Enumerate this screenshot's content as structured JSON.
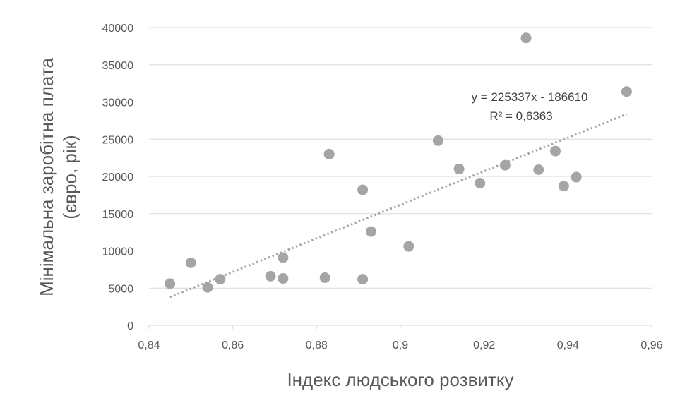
{
  "chart_data": {
    "type": "scatter",
    "title": "",
    "xlabel": "Індекс людського розвитку",
    "ylabel_line1": "Мінімальна заробітна плата",
    "ylabel_line2": "(євро, рік)",
    "xlim": [
      0.84,
      0.96
    ],
    "ylim": [
      0,
      40000
    ],
    "x_ticks": [
      0.84,
      0.86,
      0.88,
      0.9,
      0.92,
      0.94,
      0.96
    ],
    "x_tick_labels": [
      "0,84",
      "0,86",
      "0,88",
      "0,9",
      "0,92",
      "0,94",
      "0,96"
    ],
    "y_ticks": [
      0,
      5000,
      10000,
      15000,
      20000,
      25000,
      30000,
      35000,
      40000
    ],
    "y_tick_labels": [
      "0",
      "5000",
      "10000",
      "15000",
      "20000",
      "25000",
      "30000",
      "35000",
      "40000"
    ],
    "grid": "horizontal",
    "legend": "none",
    "colors": {
      "marker": "#a5a5a5",
      "trendline": "#a5a5a5",
      "grid": "#d9d9d9",
      "text": "#595959"
    },
    "series": [
      {
        "points": [
          {
            "x": 0.845,
            "y": 5600
          },
          {
            "x": 0.85,
            "y": 8400
          },
          {
            "x": 0.854,
            "y": 5100
          },
          {
            "x": 0.857,
            "y": 6200
          },
          {
            "x": 0.869,
            "y": 6600
          },
          {
            "x": 0.872,
            "y": 9100
          },
          {
            "x": 0.872,
            "y": 6300
          },
          {
            "x": 0.882,
            "y": 6400
          },
          {
            "x": 0.883,
            "y": 23000
          },
          {
            "x": 0.891,
            "y": 18200
          },
          {
            "x": 0.891,
            "y": 6200
          },
          {
            "x": 0.893,
            "y": 12600
          },
          {
            "x": 0.902,
            "y": 10600
          },
          {
            "x": 0.909,
            "y": 24800
          },
          {
            "x": 0.914,
            "y": 21000
          },
          {
            "x": 0.919,
            "y": 19100
          },
          {
            "x": 0.925,
            "y": 21500
          },
          {
            "x": 0.93,
            "y": 38600
          },
          {
            "x": 0.933,
            "y": 20900
          },
          {
            "x": 0.937,
            "y": 23400
          },
          {
            "x": 0.939,
            "y": 18700
          },
          {
            "x": 0.942,
            "y": 19900
          },
          {
            "x": 0.954,
            "y": 31400
          }
        ]
      }
    ],
    "trendline": {
      "type": "linear",
      "slope": 225337,
      "intercept": -186610,
      "x_range": [
        0.845,
        0.954
      ],
      "equation_label": "y = 225337x - 186610",
      "r2_label": "R² = 0,6363"
    }
  }
}
